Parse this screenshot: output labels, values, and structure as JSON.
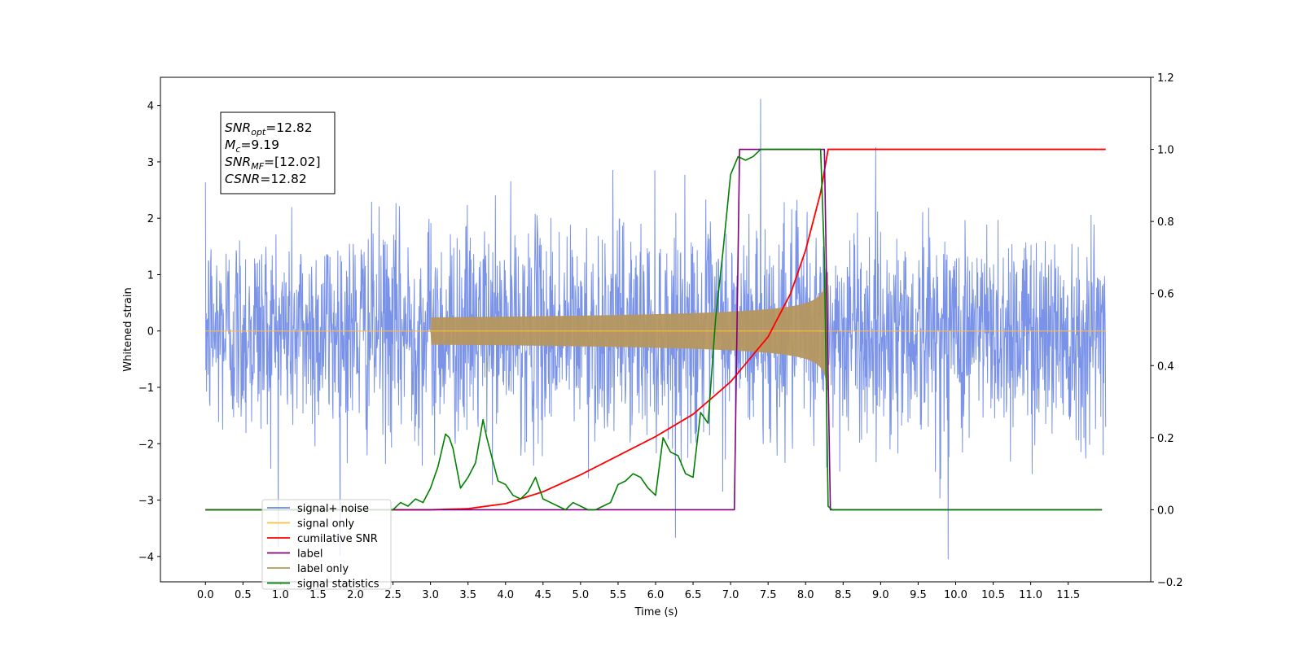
{
  "chart_data": {
    "type": "line",
    "xlabel": "Time (s)",
    "ylabel": "Whitened strain",
    "xlim": [
      -0.6,
      12.6
    ],
    "ylim": [
      -4.45,
      4.5
    ],
    "y2lim": [
      -0.2,
      1.2
    ],
    "x_ticks": [
      "0.0",
      "0.5",
      "1.0",
      "1.5",
      "2.0",
      "2.5",
      "3.0",
      "3.5",
      "4.0",
      "4.5",
      "5.0",
      "5.5",
      "6.0",
      "6.5",
      "7.0",
      "7.5",
      "8.0",
      "8.5",
      "9.0",
      "9.5",
      "10.0",
      "10.5",
      "11.0",
      "11.5"
    ],
    "y_ticks": [
      "4",
      "3",
      "2",
      "1",
      "0",
      "−1",
      "−2",
      "−3",
      "−4"
    ],
    "y2_ticks": [
      "1.2",
      "1.0",
      "0.8",
      "0.6",
      "0.4",
      "0.2",
      "0.0",
      "−0.2"
    ],
    "annotation": {
      "lines": [
        {
          "var": "SNR",
          "sub": "opt",
          "value": "=12.82"
        },
        {
          "var": "M",
          "sub": "c",
          "value": "=9.19"
        },
        {
          "var": "SNR",
          "sub": "MF",
          "value": "=[12.02]"
        },
        {
          "var": "CSNR",
          "sub": "",
          "value": "=12.82"
        }
      ]
    },
    "legend": {
      "position": "lower-left",
      "entries": [
        {
          "label": "signal+ noise",
          "color": "#6b87e6"
        },
        {
          "label": "signal only",
          "color": "#ffbf3f"
        },
        {
          "label": "cumilative SNR",
          "color": "#ff0000"
        },
        {
          "label": "label",
          "color": "#800080"
        },
        {
          "label": "label only",
          "color": "#b5965f"
        },
        {
          "label": "signal statistics",
          "color": "#008000"
        }
      ]
    },
    "series": [
      {
        "name": "signal+ noise",
        "axis": "left",
        "color": "#6b87e6",
        "description_x_range": [
          0.0,
          12.0
        ],
        "amplitude_sigma": 1.0,
        "peak_max": 4.12,
        "peak_min": -4.05
      },
      {
        "name": "signal only",
        "axis": "left",
        "color": "#ffbf3f",
        "x_range": [
          0.0,
          12.0
        ],
        "chirp_start": 3.0,
        "chirp_end": 8.3,
        "peak_amplitude": 1.05
      },
      {
        "name": "cumilative SNR",
        "axis": "right",
        "color": "#ff0000",
        "x": [
          0.0,
          3.0,
          3.5,
          4.0,
          4.5,
          5.0,
          5.5,
          6.0,
          6.5,
          7.0,
          7.5,
          7.8,
          8.0,
          8.2,
          8.3,
          12.0
        ],
        "y": [
          0.0,
          0.0,
          0.003,
          0.017,
          0.05,
          0.097,
          0.15,
          0.203,
          0.265,
          0.355,
          0.48,
          0.6,
          0.72,
          0.88,
          1.0,
          1.0
        ]
      },
      {
        "name": "label",
        "axis": "right",
        "color": "#800080",
        "x": [
          0.0,
          7.05,
          7.12,
          8.25,
          8.33,
          11.95
        ],
        "y": [
          0.0,
          0.0,
          1.0,
          1.0,
          0.0,
          0.0
        ]
      },
      {
        "name": "signal statistics",
        "axis": "right",
        "color": "#008000",
        "x": [
          0.0,
          2.5,
          2.6,
          2.7,
          2.8,
          2.9,
          3.0,
          3.1,
          3.2,
          3.25,
          3.3,
          3.4,
          3.5,
          3.6,
          3.7,
          3.75,
          3.8,
          3.9,
          4.0,
          4.1,
          4.2,
          4.3,
          4.4,
          4.5,
          4.6,
          4.7,
          4.8,
          4.9,
          5.0,
          5.1,
          5.2,
          5.3,
          5.4,
          5.5,
          5.6,
          5.7,
          5.8,
          5.9,
          6.0,
          6.1,
          6.2,
          6.3,
          6.4,
          6.5,
          6.6,
          6.7,
          6.8,
          6.9,
          7.0,
          7.1,
          7.2,
          7.3,
          7.4,
          7.5,
          7.6,
          7.7,
          7.8,
          7.9,
          8.0,
          8.1,
          8.2,
          8.25,
          8.3,
          8.35,
          11.95
        ],
        "y": [
          0.0,
          0.0,
          0.02,
          0.01,
          0.03,
          0.02,
          0.06,
          0.12,
          0.21,
          0.2,
          0.17,
          0.06,
          0.09,
          0.13,
          0.25,
          0.2,
          0.16,
          0.08,
          0.07,
          0.04,
          0.03,
          0.05,
          0.09,
          0.03,
          0.02,
          0.01,
          0.0,
          0.02,
          0.01,
          0.0,
          0.0,
          0.01,
          0.02,
          0.07,
          0.08,
          0.1,
          0.09,
          0.06,
          0.04,
          0.2,
          0.16,
          0.15,
          0.1,
          0.09,
          0.27,
          0.24,
          0.53,
          0.72,
          0.93,
          0.98,
          0.97,
          0.98,
          1.0,
          1.0,
          1.0,
          1.0,
          1.0,
          1.0,
          1.0,
          1.0,
          1.0,
          0.7,
          0.01,
          0.0,
          0.0
        ]
      }
    ]
  }
}
